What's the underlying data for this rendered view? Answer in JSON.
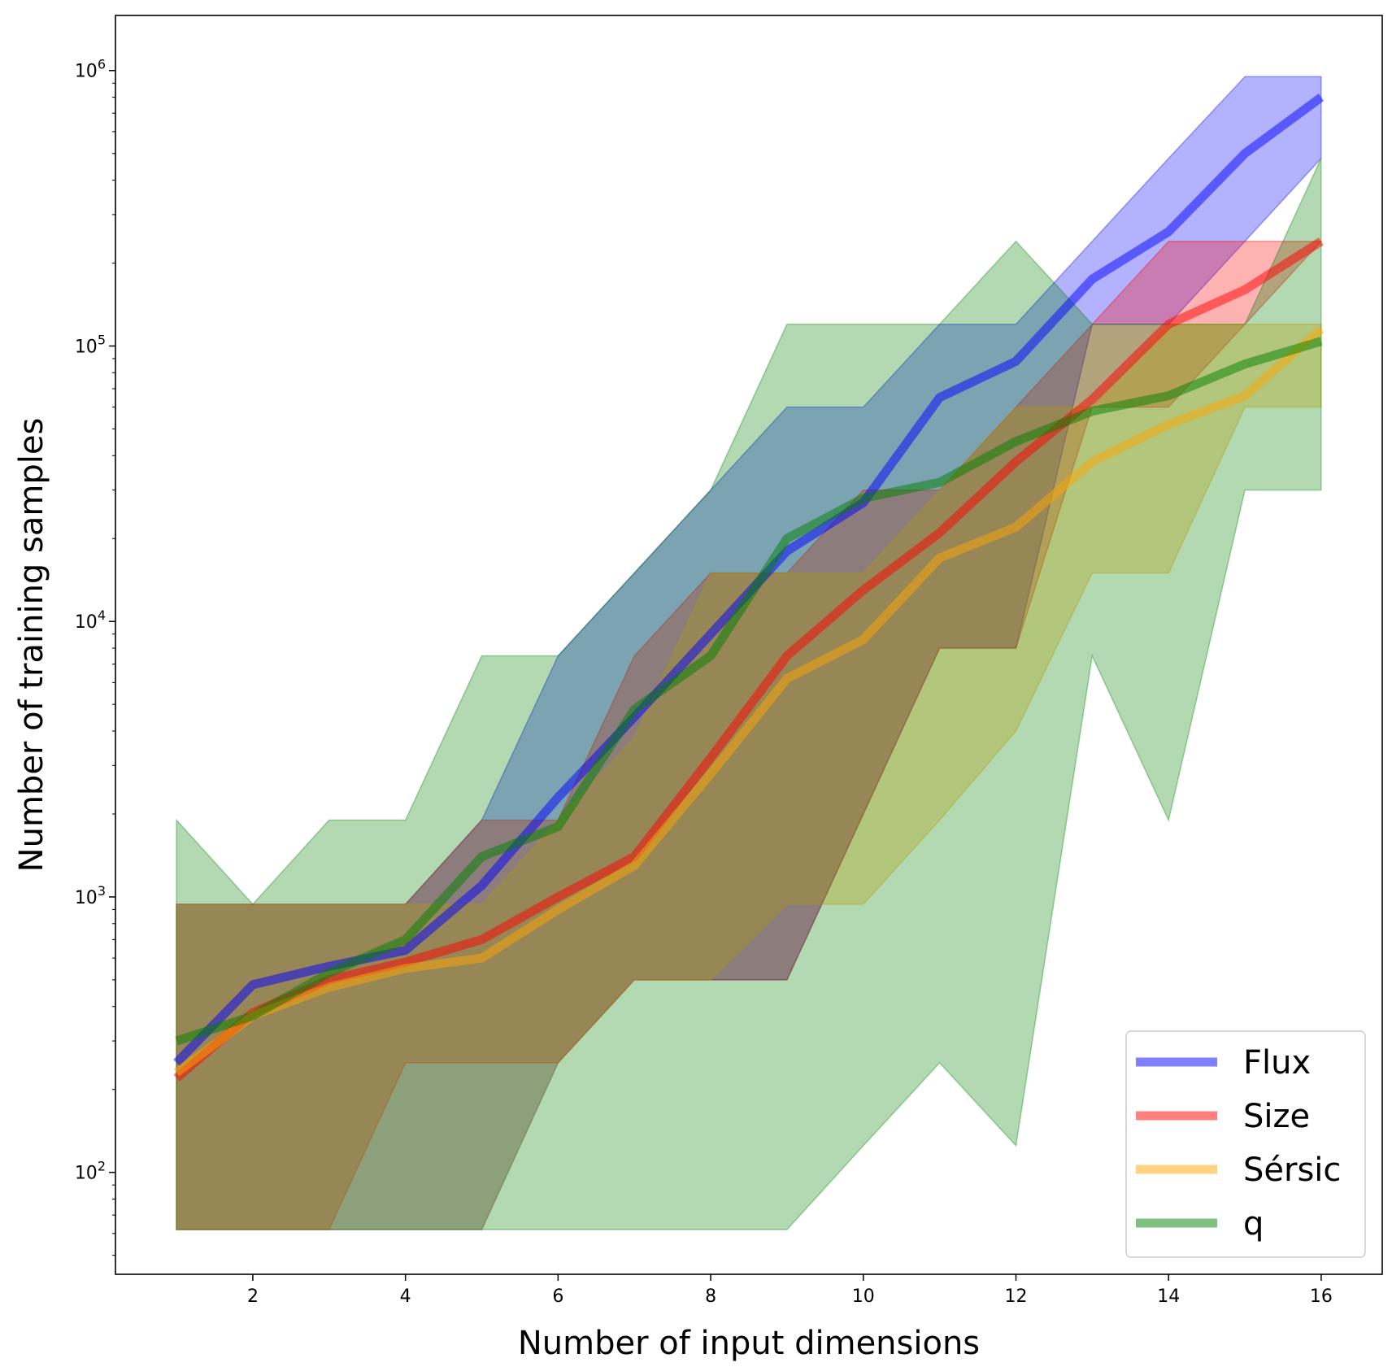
{
  "chart_data": {
    "type": "line",
    "xlabel": "Number of input dimensions",
    "ylabel": "Number of training samples",
    "xlim": [
      0.2,
      16.8
    ],
    "ylim_log10": [
      1.63,
      6.2
    ],
    "yscale": "log",
    "grid": false,
    "legend_position": "lower-right",
    "x_ticks": [
      {
        "value": 2,
        "label": "2"
      },
      {
        "value": 4,
        "label": "4"
      },
      {
        "value": 6,
        "label": "6"
      },
      {
        "value": 8,
        "label": "8"
      },
      {
        "value": 10,
        "label": "10"
      },
      {
        "value": 12,
        "label": "12"
      },
      {
        "value": 14,
        "label": "14"
      },
      {
        "value": 16,
        "label": "16"
      }
    ],
    "y_ticks": [
      {
        "log": 2,
        "base": "10",
        "exp": "2"
      },
      {
        "log": 3,
        "base": "10",
        "exp": "3"
      },
      {
        "log": 4,
        "base": "10",
        "exp": "4"
      },
      {
        "log": 5,
        "base": "10",
        "exp": "5"
      },
      {
        "log": 6,
        "base": "10",
        "exp": "6"
      }
    ],
    "x": [
      1,
      2,
      3,
      4,
      5,
      6,
      7,
      8,
      9,
      10,
      11,
      12,
      13,
      14,
      15,
      16
    ],
    "series": [
      {
        "name": "Flux",
        "color": "#0000ff",
        "median": [
          250,
          480,
          560,
          640,
          1100,
          2300,
          4500,
          9000,
          18000,
          27000,
          65000,
          88000,
          175000,
          260000,
          500000,
          800000
        ],
        "lower": [
          62,
          62,
          62,
          62,
          62,
          250,
          500,
          500,
          500,
          2000,
          8000,
          8000,
          120000,
          120000,
          240000,
          480000
        ],
        "upper": [
          940,
          940,
          940,
          940,
          1900,
          7500,
          15000,
          30000,
          60000,
          60000,
          120000,
          120000,
          240000,
          480000,
          950000,
          950000
        ]
      },
      {
        "name": "Size",
        "color": "#ff0000",
        "median": [
          220,
          380,
          500,
          580,
          700,
          1000,
          1400,
          3200,
          7500,
          13000,
          21000,
          38000,
          64000,
          120000,
          160000,
          240000
        ],
        "lower": [
          62,
          62,
          62,
          250,
          250,
          250,
          500,
          500,
          500,
          2000,
          8000,
          8000,
          60000,
          60000,
          120000,
          240000
        ],
        "upper": [
          940,
          940,
          940,
          940,
          1900,
          1900,
          7500,
          15000,
          15000,
          30000,
          30000,
          60000,
          120000,
          240000,
          240000,
          240000
        ]
      },
      {
        "name": "Sérsic",
        "color": "#ffa500",
        "median": [
          230,
          370,
          470,
          550,
          600,
          900,
          1300,
          2800,
          6200,
          8600,
          17000,
          22000,
          38000,
          52000,
          66000,
          115000
        ],
        "lower": [
          62,
          62,
          62,
          62,
          62,
          250,
          500,
          500,
          940,
          940,
          1900,
          4000,
          15000,
          15000,
          60000,
          60000
        ],
        "upper": [
          940,
          940,
          940,
          940,
          940,
          1900,
          3800,
          15000,
          15000,
          15000,
          30000,
          60000,
          60000,
          120000,
          120000,
          120000
        ]
      },
      {
        "name": "q",
        "color": "#008000",
        "median": [
          300,
          370,
          530,
          700,
          1400,
          1800,
          4800,
          7500,
          20000,
          28000,
          32000,
          45000,
          58000,
          66000,
          86000,
          104000
        ],
        "lower": [
          62,
          62,
          62,
          62,
          62,
          62,
          62,
          62,
          62,
          125,
          250,
          125,
          7500,
          1900,
          30000,
          30000
        ],
        "upper": [
          1900,
          940,
          1900,
          1900,
          7500,
          7500,
          15000,
          30000,
          120000,
          120000,
          120000,
          240000,
          120000,
          120000,
          120000,
          480000
        ]
      }
    ]
  }
}
